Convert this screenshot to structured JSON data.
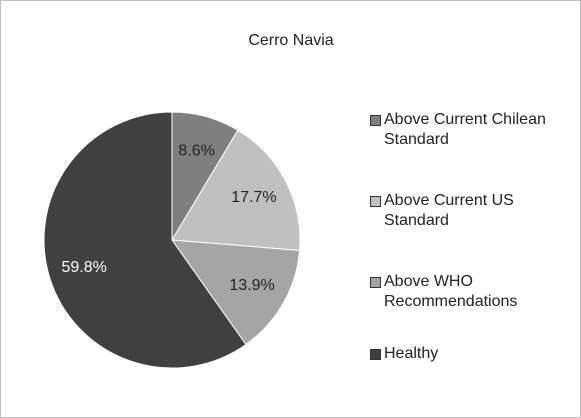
{
  "chart_data": {
    "type": "pie",
    "title": "Cerro Navia",
    "categories": [
      "Above Current Chilean Standard",
      "Above Current US Standard",
      "Above WHO Recommendations",
      "Healthy"
    ],
    "values": [
      8.6,
      17.7,
      13.9,
      59.8
    ],
    "value_labels": [
      "8.6%",
      "17.7%",
      "13.9%",
      "59.8%"
    ],
    "colors": [
      "#7f7f7f",
      "#c0c0c0",
      "#a5a5a5",
      "#404040"
    ],
    "legend": "right"
  }
}
